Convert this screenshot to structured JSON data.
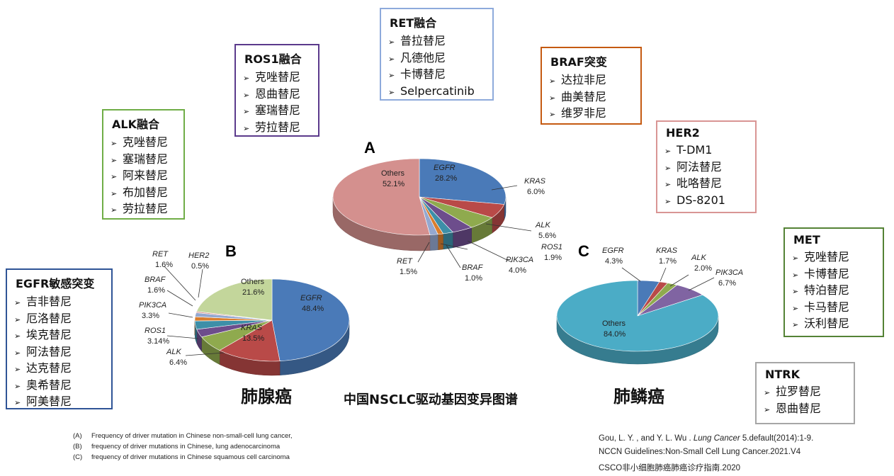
{
  "main_title": "中国NSCLC驱动基因变异图谱",
  "captions": {
    "adeno": "肺腺癌",
    "squamous": "肺鳞癌"
  },
  "drug_boxes": [
    {
      "id": "egfr",
      "title": "EGFR敏感突变",
      "color": "#2f5496",
      "items": [
        "吉非替尼",
        "厄洛替尼",
        "埃克替尼",
        "阿法替尼",
        "达克替尼",
        "奥希替尼",
        "阿美替尼"
      ]
    },
    {
      "id": "alk",
      "title": "ALK融合",
      "color": "#70ad47",
      "items": [
        "克唑替尼",
        "塞瑞替尼",
        "阿来替尼",
        "布加替尼",
        "劳拉替尼"
      ]
    },
    {
      "id": "ros1",
      "title": "ROS1融合",
      "color": "#5b3a8c",
      "items": [
        "克唑替尼",
        "恩曲替尼",
        "塞瑞替尼",
        "劳拉替尼"
      ]
    },
    {
      "id": "ret",
      "title": "RET融合",
      "color": "#8eaadb",
      "items": [
        "普拉替尼",
        "凡德他尼",
        "卡博替尼",
        "Selpercatinib"
      ]
    },
    {
      "id": "braf",
      "title": "BRAF突变",
      "color": "#c55a11",
      "items": [
        "达拉非尼",
        "曲美替尼",
        "维罗非尼"
      ]
    },
    {
      "id": "her2",
      "title": "HER2",
      "color": "#d99594",
      "items": [
        "T-DM1",
        "阿法替尼",
        "吡咯替尼",
        "DS-8201"
      ]
    },
    {
      "id": "met",
      "title": "MET",
      "color": "#548235",
      "items": [
        "克唑替尼",
        "卡博替尼",
        "特泊替尼",
        "卡马替尼",
        "沃利替尼"
      ]
    },
    {
      "id": "ntrk",
      "title": "NTRK",
      "color": "#a6a6a6",
      "items": [
        "拉罗替尼",
        "恩曲替尼"
      ]
    }
  ],
  "chart_data": [
    {
      "type": "pie",
      "title": "A",
      "categories": [
        "EGFR",
        "KRAS",
        "ALK",
        "PIK3CA",
        "ROS1",
        "BRAF",
        "RET",
        "Others"
      ],
      "values": [
        28.2,
        6.0,
        5.6,
        4.0,
        1.9,
        1.0,
        1.5,
        52.1
      ],
      "value_labels": [
        "28.2%",
        "6.0%",
        "5.6%",
        "4.0%",
        "1.9%",
        "1.0%",
        "1.5%",
        "52.1%"
      ],
      "colors": [
        "#4a7ab8",
        "#b94a48",
        "#8faa4e",
        "#6d4d8c",
        "#3d8fa8",
        "#d97d2d",
        "#94a8d0",
        "#d4908e"
      ]
    },
    {
      "type": "pie",
      "title": "B",
      "categories": [
        "EGFR",
        "KRAS",
        "ALK",
        "ROS1",
        "PIK3CA",
        "BRAF",
        "RET",
        "HER2",
        "Others"
      ],
      "values": [
        48.4,
        13.5,
        6.4,
        3.14,
        3.3,
        1.6,
        1.6,
        0.5,
        21.6
      ],
      "value_labels": [
        "48.4%",
        "13.5%",
        "6.4%",
        "3.14%",
        "3.3%",
        "1.6%",
        "1.6%",
        "0.5%",
        "21.6%"
      ],
      "colors": [
        "#4a7ab8",
        "#b94a48",
        "#8faa4e",
        "#6d4d8c",
        "#3d8fa8",
        "#d97d2d",
        "#94a8d0",
        "#d4908e",
        "#c3d69b"
      ]
    },
    {
      "type": "pie",
      "title": "C",
      "categories": [
        "EGFR",
        "KRAS",
        "ALK",
        "PIK3CA",
        "Others"
      ],
      "values": [
        4.3,
        1.7,
        2.0,
        6.7,
        84.0
      ],
      "value_labels": [
        "4.3%",
        "1.7%",
        "2.0%",
        "6.7%",
        "84.0%"
      ],
      "colors": [
        "#4a7ab8",
        "#b94a48",
        "#8faa4e",
        "#8064a2",
        "#4bacc6"
      ]
    }
  ],
  "notes": [
    {
      "key": "(A)",
      "text": "Frequency of driver mutation in Chinese non-small-cell lung cancer,"
    },
    {
      "key": "(B)",
      "text": "frequency of driver mutations in Chinese, lung adenocarcinoma"
    },
    {
      "key": "(C)",
      "text": "frequency of driver mutations in Chinese squamous cell carcinoma"
    }
  ],
  "references": [
    {
      "pre": "Gou, L. Y. , and Y. L. Wu . ",
      "journal": "Lung Cancer",
      "post": " 5.default(2014):1-9."
    },
    {
      "pre": "NCCN Guidelines:Non-Small Cell Lung Cancer.2021.V4",
      "journal": "",
      "post": ""
    },
    {
      "pre": "CSCO非小细胞肺癌肺癌诊疗指南.2020",
      "journal": "",
      "post": ""
    }
  ]
}
